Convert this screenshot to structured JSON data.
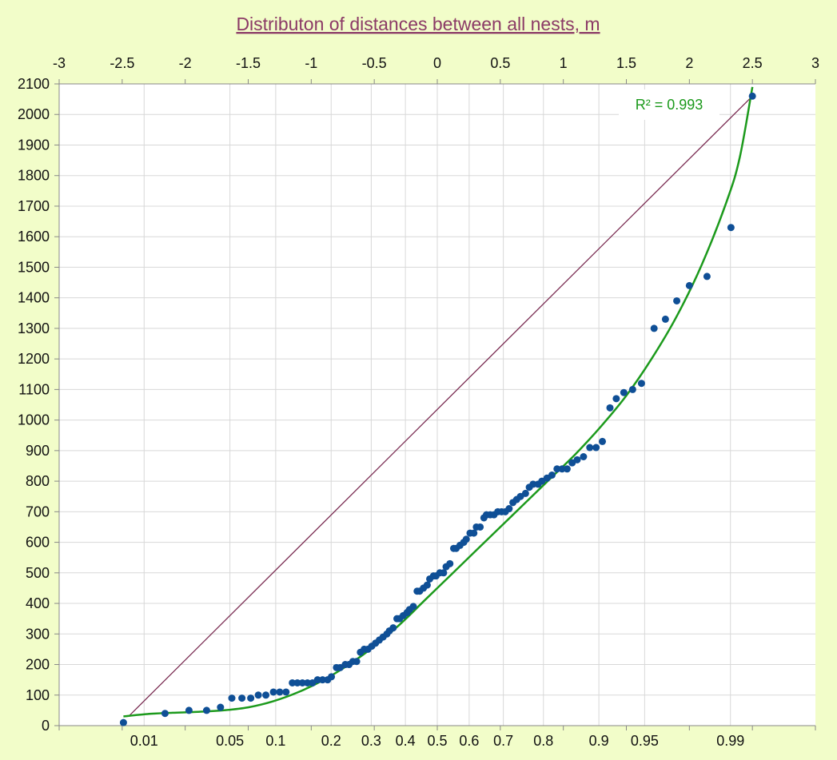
{
  "chart_data": {
    "type": "scatter",
    "title": "Distributon of distances between all nests, m",
    "xlabel": "",
    "ylabel": "",
    "x_top_ticks": [
      "-3",
      "-2.5",
      "-2",
      "-1.5",
      "-1",
      "-0.5",
      "0",
      "0.5",
      "1",
      "1.5",
      "2",
      "2.5",
      "3"
    ],
    "xlim": [
      -3,
      3
    ],
    "ylim": [
      0,
      2100
    ],
    "y_ticks": [
      "0",
      "100",
      "200",
      "300",
      "400",
      "500",
      "600",
      "700",
      "800",
      "900",
      "1000",
      "1100",
      "1200",
      "1300",
      "1400",
      "1500",
      "1600",
      "1700",
      "1800",
      "1900",
      "2000",
      "2100"
    ],
    "x_bottom_ticks": [
      {
        "label": "0.01",
        "z": -2.326
      },
      {
        "label": "0.05",
        "z": -1.645
      },
      {
        "label": "0.1",
        "z": -1.282
      },
      {
        "label": "0.2",
        "z": -0.842
      },
      {
        "label": "0.3",
        "z": -0.524
      },
      {
        "label": "0.4",
        "z": -0.253
      },
      {
        "label": "0.5",
        "z": 0
      },
      {
        "label": "0.6",
        "z": 0.253
      },
      {
        "label": "0.7",
        "z": 0.524
      },
      {
        "label": "0.8",
        "z": 0.842
      },
      {
        "label": "0.9",
        "z": 1.282
      },
      {
        "label": "0.95",
        "z": 1.645
      },
      {
        "label": "0.99",
        "z": 2.326
      }
    ],
    "series": [
      {
        "marker_color": "#0f4f96",
        "points": [
          [
            -2.49,
            10
          ],
          [
            -2.16,
            40
          ],
          [
            -1.97,
            50
          ],
          [
            -1.83,
            50
          ],
          [
            -1.72,
            60
          ],
          [
            -1.63,
            90
          ],
          [
            -1.55,
            90
          ],
          [
            -1.48,
            90
          ],
          [
            -1.42,
            100
          ],
          [
            -1.36,
            100
          ],
          [
            -1.3,
            110
          ],
          [
            -1.25,
            110
          ],
          [
            -1.2,
            110
          ],
          [
            -1.15,
            140
          ],
          [
            -1.11,
            140
          ],
          [
            -1.07,
            140
          ],
          [
            -1.03,
            140
          ],
          [
            -0.99,
            140
          ],
          [
            -0.95,
            150
          ],
          [
            -0.91,
            150
          ],
          [
            -0.87,
            150
          ],
          [
            -0.84,
            160
          ],
          [
            -0.8,
            190
          ],
          [
            -0.77,
            190
          ],
          [
            -0.73,
            200
          ],
          [
            -0.7,
            200
          ],
          [
            -0.67,
            210
          ],
          [
            -0.64,
            210
          ],
          [
            -0.61,
            240
          ],
          [
            -0.58,
            250
          ],
          [
            -0.55,
            250
          ],
          [
            -0.52,
            260
          ],
          [
            -0.49,
            270
          ],
          [
            -0.46,
            280
          ],
          [
            -0.43,
            290
          ],
          [
            -0.4,
            300
          ],
          [
            -0.38,
            310
          ],
          [
            -0.35,
            320
          ],
          [
            -0.32,
            350
          ],
          [
            -0.3,
            350
          ],
          [
            -0.27,
            360
          ],
          [
            -0.24,
            370
          ],
          [
            -0.22,
            380
          ],
          [
            -0.19,
            390
          ],
          [
            -0.16,
            440
          ],
          [
            -0.14,
            440
          ],
          [
            -0.11,
            450
          ],
          [
            -0.08,
            460
          ],
          [
            -0.06,
            480
          ],
          [
            -0.03,
            490
          ],
          [
            -0.01,
            490
          ],
          [
            0.02,
            500
          ],
          [
            0.05,
            500
          ],
          [
            0.07,
            520
          ],
          [
            0.1,
            530
          ],
          [
            0.13,
            580
          ],
          [
            0.15,
            580
          ],
          [
            0.18,
            590
          ],
          [
            0.21,
            600
          ],
          [
            0.23,
            610
          ],
          [
            0.26,
            630
          ],
          [
            0.29,
            630
          ],
          [
            0.31,
            650
          ],
          [
            0.34,
            650
          ],
          [
            0.37,
            680
          ],
          [
            0.39,
            690
          ],
          [
            0.42,
            690
          ],
          [
            0.45,
            690
          ],
          [
            0.48,
            700
          ],
          [
            0.51,
            700
          ],
          [
            0.54,
            700
          ],
          [
            0.57,
            710
          ],
          [
            0.6,
            730
          ],
          [
            0.63,
            740
          ],
          [
            0.66,
            750
          ],
          [
            0.7,
            760
          ],
          [
            0.73,
            780
          ],
          [
            0.76,
            790
          ],
          [
            0.8,
            790
          ],
          [
            0.83,
            800
          ],
          [
            0.87,
            810
          ],
          [
            0.91,
            820
          ],
          [
            0.95,
            840
          ],
          [
            0.99,
            840
          ],
          [
            1.03,
            840
          ],
          [
            1.07,
            860
          ],
          [
            1.11,
            870
          ],
          [
            1.16,
            880
          ],
          [
            1.21,
            910
          ],
          [
            1.26,
            910
          ],
          [
            1.31,
            930
          ],
          [
            1.37,
            1040
          ],
          [
            1.42,
            1070
          ],
          [
            1.48,
            1090
          ],
          [
            1.55,
            1100
          ],
          [
            1.62,
            1120
          ],
          [
            1.72,
            1300
          ],
          [
            1.81,
            1330
          ],
          [
            1.9,
            1390
          ],
          [
            2.0,
            1440
          ],
          [
            2.14,
            1470
          ],
          [
            2.33,
            1630
          ],
          [
            2.5,
            2060
          ]
        ]
      }
    ],
    "trendline": {
      "type": "polynomial",
      "color": "#1c9a1c",
      "r2_label": "R² = 0.993",
      "points": [
        [
          -2.49,
          30
        ],
        [
          -2.3,
          38
        ],
        [
          -2.1,
          42
        ],
        [
          -1.9,
          45
        ],
        [
          -1.7,
          50
        ],
        [
          -1.5,
          60
        ],
        [
          -1.3,
          80
        ],
        [
          -1.1,
          110
        ],
        [
          -0.9,
          150
        ],
        [
          -0.7,
          200
        ],
        [
          -0.5,
          260
        ],
        [
          -0.3,
          330
        ],
        [
          -0.1,
          410
        ],
        [
          0.1,
          490
        ],
        [
          0.3,
          570
        ],
        [
          0.5,
          650
        ],
        [
          0.7,
          730
        ],
        [
          0.9,
          810
        ],
        [
          1.1,
          890
        ],
        [
          1.3,
          980
        ],
        [
          1.5,
          1080
        ],
        [
          1.7,
          1200
        ],
        [
          1.9,
          1340
        ],
        [
          2.1,
          1510
        ],
        [
          2.3,
          1720
        ],
        [
          2.4,
          1860
        ],
        [
          2.5,
          2090
        ]
      ]
    },
    "reference_line": {
      "color": "#7a2c52",
      "points": [
        [
          -2.45,
          30
        ],
        [
          2.5,
          2060
        ]
      ]
    }
  }
}
